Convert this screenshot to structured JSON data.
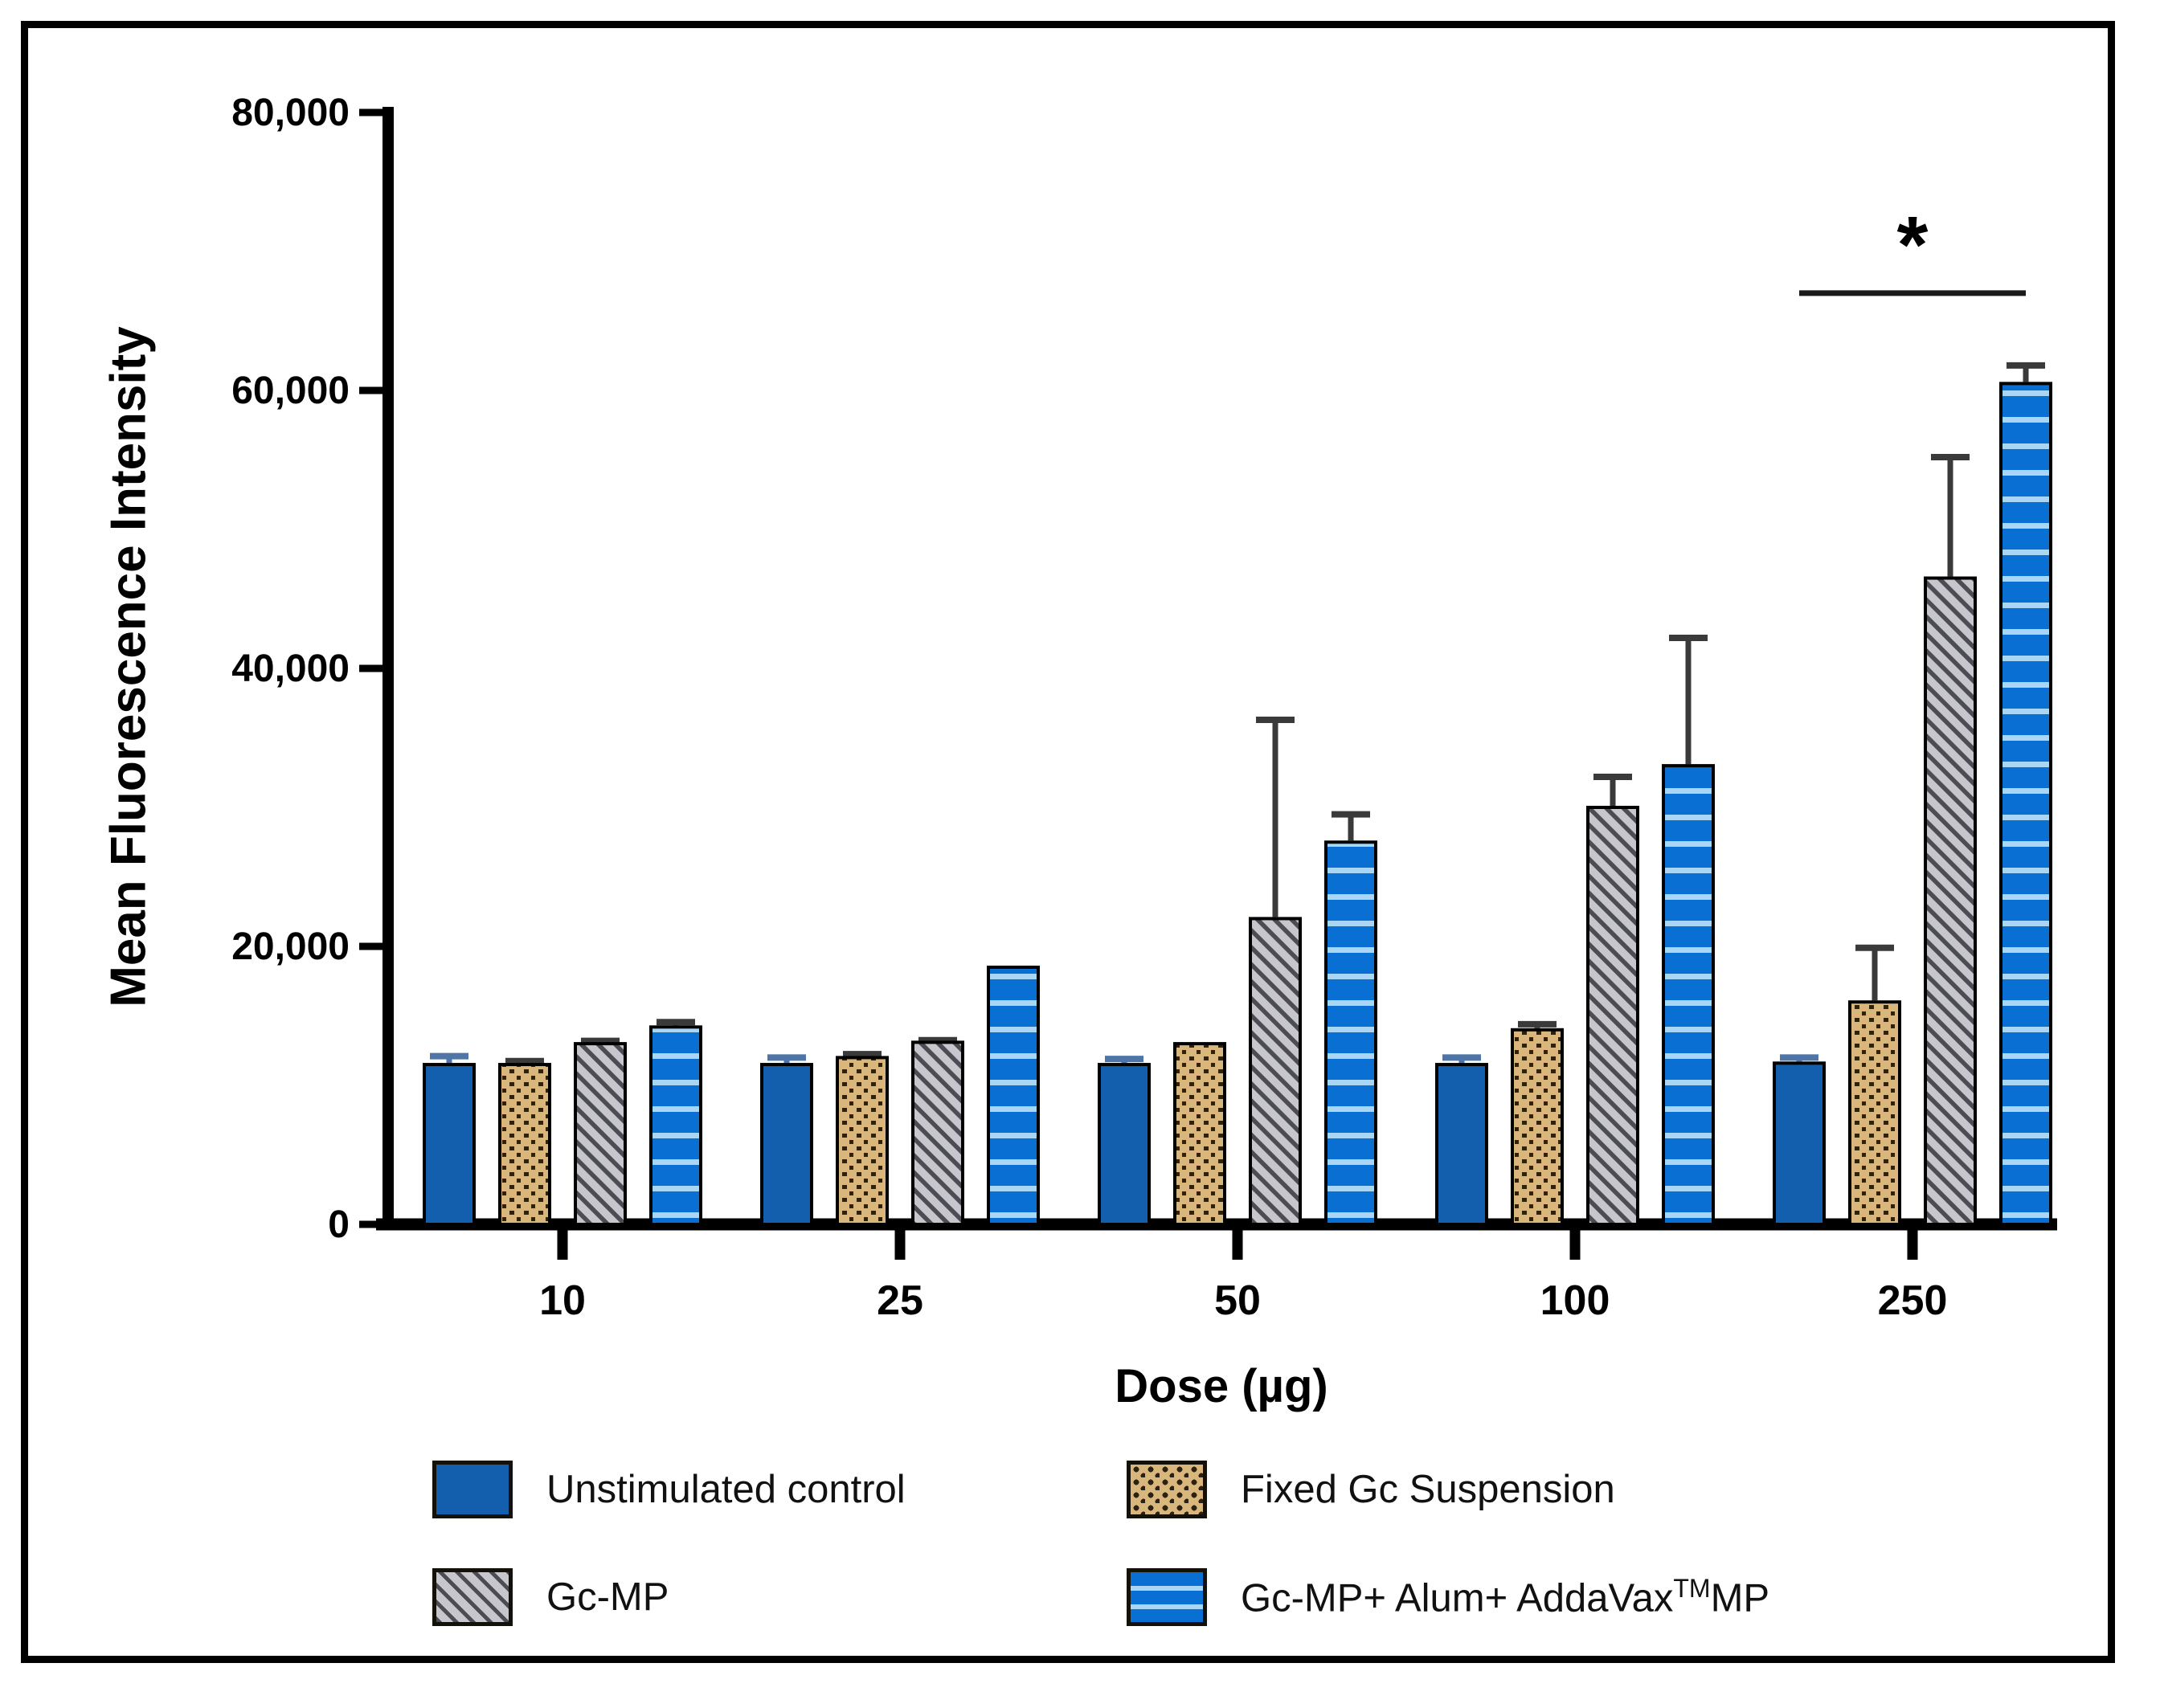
{
  "figure": {
    "y_axis_title": "Mean Fluorescence Intensity",
    "x_axis_title": "Dose (µg)"
  },
  "legend": [
    {
      "label": "Unstimulated control",
      "swatch": "solid-blue"
    },
    {
      "label": "Fixed Gc Suspension",
      "swatch": "tan-dots"
    },
    {
      "label": "Gc-MP",
      "swatch": "gray-diagonal"
    },
    {
      "label_pre": "Gc-MP+ Alum+ AddaVax",
      "label_sup": "TM",
      "label_post": "MP",
      "swatch": "blue-hstripes"
    }
  ],
  "chart_data": {
    "type": "bar",
    "title": "",
    "xlabel": "Dose (µg)",
    "ylabel": "Mean Fluorescence Intensity",
    "categories": [
      "10",
      "25",
      "50",
      "100",
      "250"
    ],
    "ylim": [
      0,
      80000
    ],
    "grid": false,
    "legend_position": "bottom",
    "yticks": [
      {
        "value": 0,
        "label": "0"
      },
      {
        "value": 20000,
        "label": "20,000"
      },
      {
        "value": 40000,
        "label": "40,000"
      },
      {
        "value": 60000,
        "label": "60,000"
      },
      {
        "value": 80000,
        "label": "80,000"
      }
    ],
    "series": [
      {
        "name": "Unstimulated control",
        "pattern": "solid",
        "color": "#135fae",
        "error_color": "#4e74a8",
        "values": [
          11500,
          11500,
          11500,
          11500,
          11600
        ],
        "errors": [
          600,
          500,
          400,
          500,
          400
        ]
      },
      {
        "name": "Fixed Gc Suspension",
        "pattern": "dots",
        "color": "#d9b77c",
        "error_color": "#3a3a3a",
        "values": [
          11500,
          12000,
          13000,
          14000,
          16000
        ],
        "errors": [
          250,
          250,
          0,
          400,
          3900
        ]
      },
      {
        "name": "Gc-MP",
        "pattern": "diagonal",
        "color": "#c6c6cc",
        "error_color": "#3a3a3a",
        "values": [
          13000,
          13100,
          22000,
          30000,
          46500
        ],
        "errors": [
          200,
          150,
          14300,
          2200,
          8700
        ]
      },
      {
        "name": "Gc-MP+ Alum+ AddaVax™MP",
        "pattern": "hstripes",
        "color": "#0a6fd2",
        "error_color": "#3a3a3a",
        "values": [
          14200,
          18500,
          27500,
          33000,
          60500
        ],
        "errors": [
          350,
          0,
          2000,
          9200,
          1300
        ]
      }
    ],
    "significance": {
      "category_index": 4,
      "from_series": 0,
      "to_series": 3,
      "label": "*",
      "line_value": 67000
    }
  }
}
